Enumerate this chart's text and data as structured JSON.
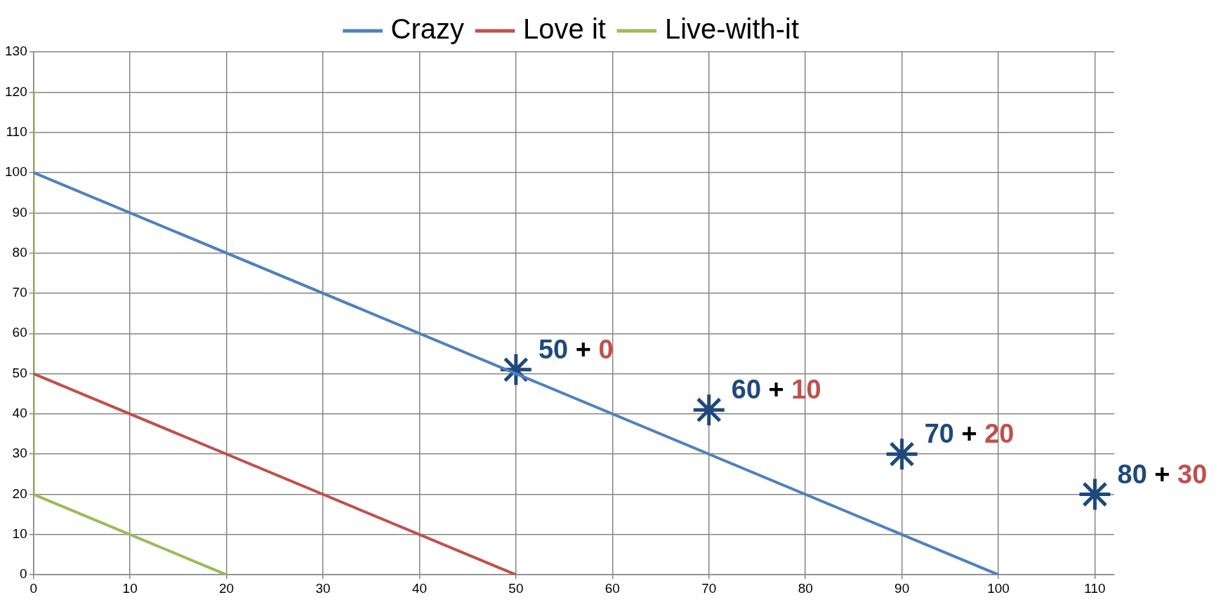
{
  "chart_data": {
    "type": "line",
    "legend": "top",
    "grid": true,
    "xlim": [
      0,
      112
    ],
    "xticks": [
      0,
      10,
      20,
      30,
      40,
      50,
      60,
      70,
      80,
      90,
      100,
      110
    ],
    "ylim": [
      0,
      130
    ],
    "yticks": [
      0,
      10,
      20,
      30,
      40,
      50,
      60,
      70,
      80,
      90,
      100,
      110,
      120,
      130
    ],
    "series": [
      {
        "name": "Crazy",
        "color": "#4f81bd",
        "x": [
          0,
          100
        ],
        "values": [
          100,
          0
        ],
        "marker": "none"
      },
      {
        "name": "Love it",
        "color": "#c0504d",
        "x": [
          0,
          50
        ],
        "values": [
          50,
          0
        ],
        "marker": "none"
      },
      {
        "name": "Live-with-it",
        "color": "#9bbb59",
        "x": [
          0,
          0,
          20
        ],
        "values": [
          120,
          20,
          0
        ],
        "marker": "none"
      },
      {
        "type": "scatter",
        "color": "#1f497d",
        "x": [
          50,
          70,
          90,
          110
        ],
        "values": [
          51,
          41,
          30,
          20
        ]
      }
    ],
    "annotations": [
      {
        "text": "50 + 0",
        "x": 50,
        "y": 51
      },
      {
        "text": "60 + 10",
        "x": 70,
        "y": 41
      },
      {
        "text": "70 + 20",
        "x": 90,
        "y": 30
      },
      {
        "text": "80 + 30",
        "x": 110,
        "y": 20
      }
    ]
  }
}
